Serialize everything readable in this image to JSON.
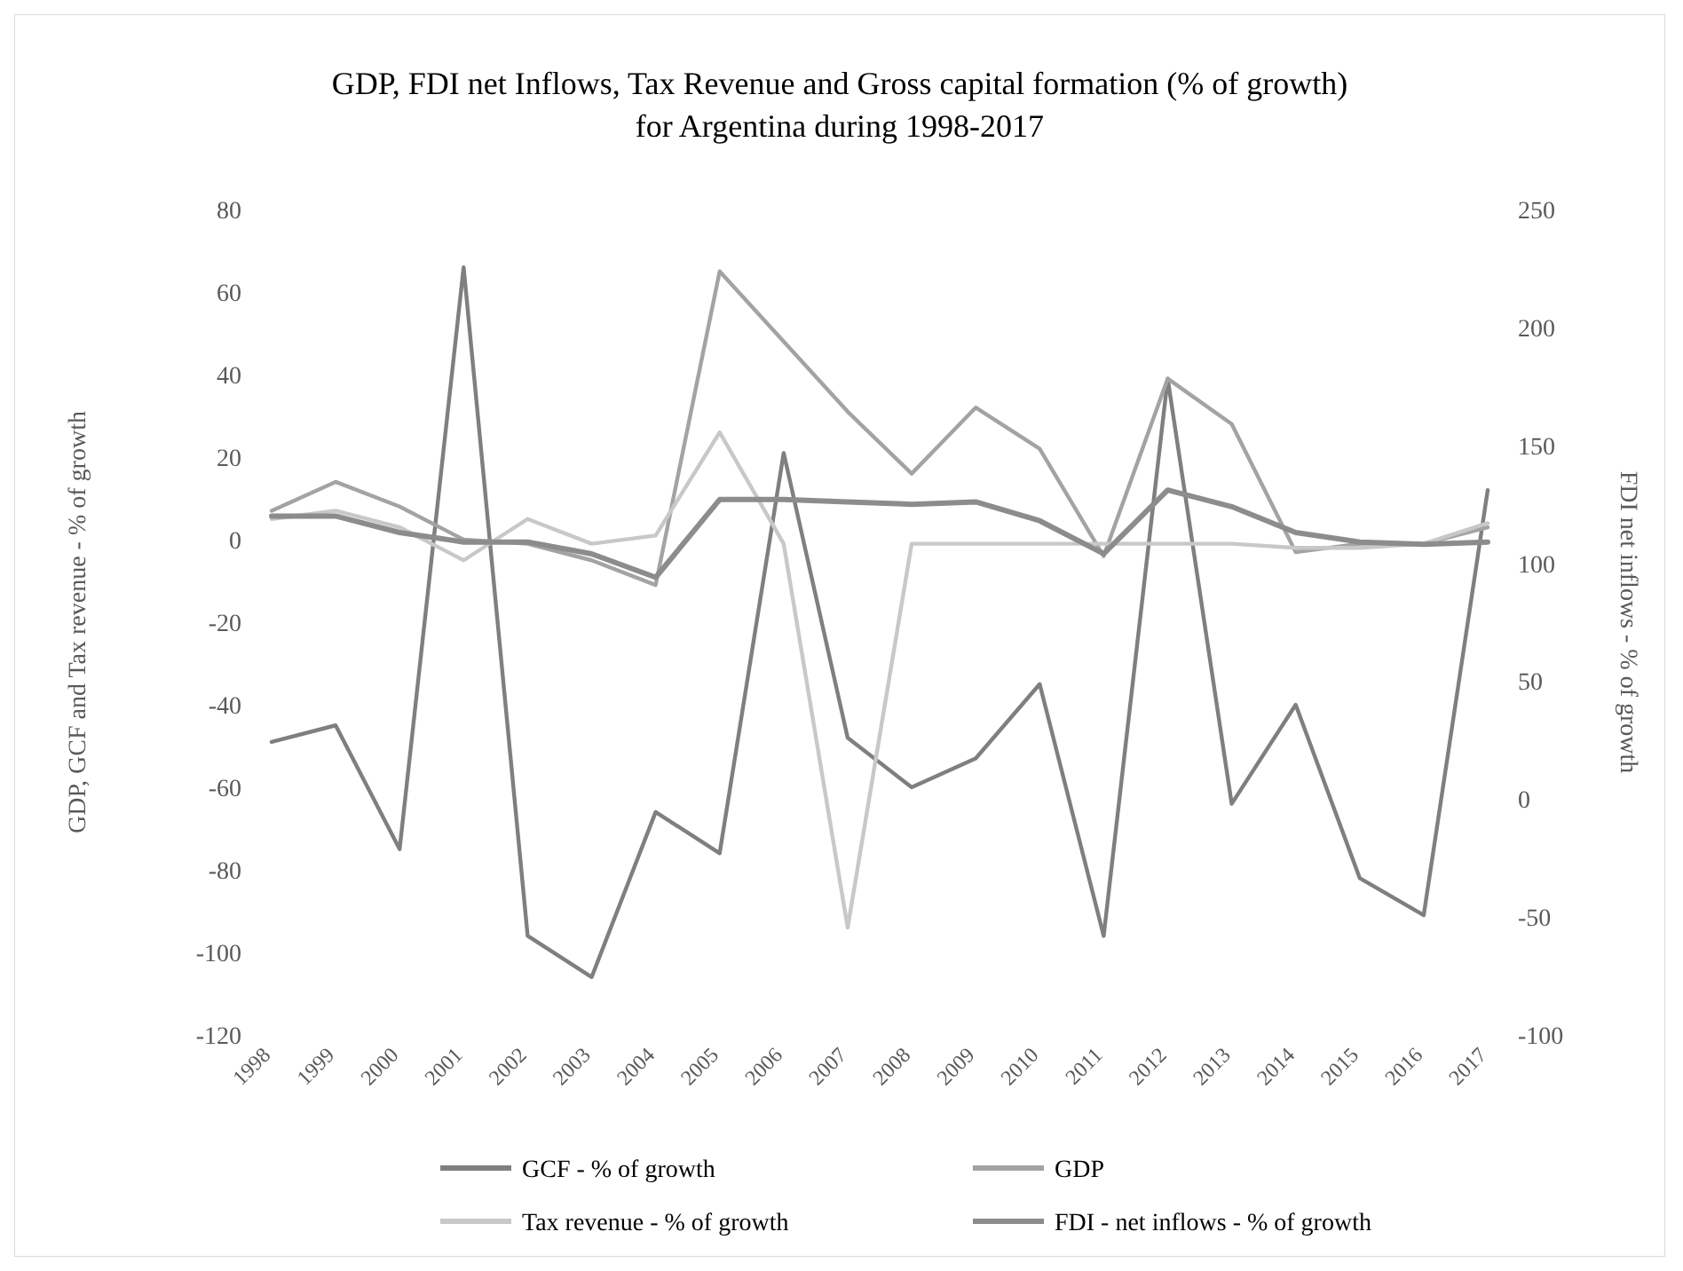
{
  "chart_data": {
    "type": "line",
    "title": "GDP, FDI net Inflows, Tax Revenue and Gross capital formation (% of growth) for Argentina during 1998-2017",
    "ylabel": "GDP, GCF and Tax revenue - % of growth",
    "y2label": "FDI net inflows - % of growth",
    "categories": [
      "1998",
      "1999",
      "2000",
      "2001",
      "2002",
      "2003",
      "2004",
      "2005",
      "2006",
      "2007",
      "2008",
      "2009",
      "2010",
      "2011",
      "2012",
      "2013",
      "2014",
      "2015",
      "2016",
      "2017"
    ],
    "series": [
      {
        "name": "GCF - % of growth",
        "color": "#7f7f7f",
        "values": [
          -49,
          -45,
          -75,
          66,
          -96,
          -106,
          -66,
          -76,
          21,
          -48,
          -60,
          -53,
          -35,
          -96,
          39,
          -64,
          -40,
          -82,
          -91,
          12
        ]
      },
      {
        "name": "GDP",
        "color": "#a3a3a3",
        "values": [
          7,
          14,
          8,
          0,
          -1,
          -5,
          -11,
          65,
          48,
          31,
          16,
          32,
          22,
          -4,
          39,
          28,
          -3,
          -1,
          -1,
          3
        ]
      },
      {
        "name": "Tax revenue - % of growth",
        "color": "#c8c8c8",
        "values": [
          5,
          7,
          3,
          -5,
          5,
          -1,
          1,
          26,
          -1,
          -94,
          -1,
          -1,
          -1,
          -1,
          -1,
          -1,
          -2,
          -2,
          -1,
          4
        ]
      },
      {
        "name": "FDI - net inflows - % of growth",
        "color": "#8c8c8c",
        "axis": "y2",
        "values": [
          120,
          120,
          113,
          109,
          109,
          104,
          94,
          127,
          127,
          126,
          125,
          126,
          118,
          104,
          131,
          124,
          113,
          109,
          108,
          109
        ]
      }
    ],
    "ylim": [
      -120,
      80
    ],
    "yticks": [
      80,
      60,
      40,
      20,
      0,
      -20,
      -40,
      -60,
      -80,
      -100,
      -120
    ],
    "y2lim": [
      -100,
      250
    ],
    "y2ticks": [
      250,
      200,
      150,
      100,
      50,
      0,
      -50,
      -100
    ],
    "legend": "bottom",
    "grid": false,
    "marker": "none",
    "line_style": "solid"
  }
}
